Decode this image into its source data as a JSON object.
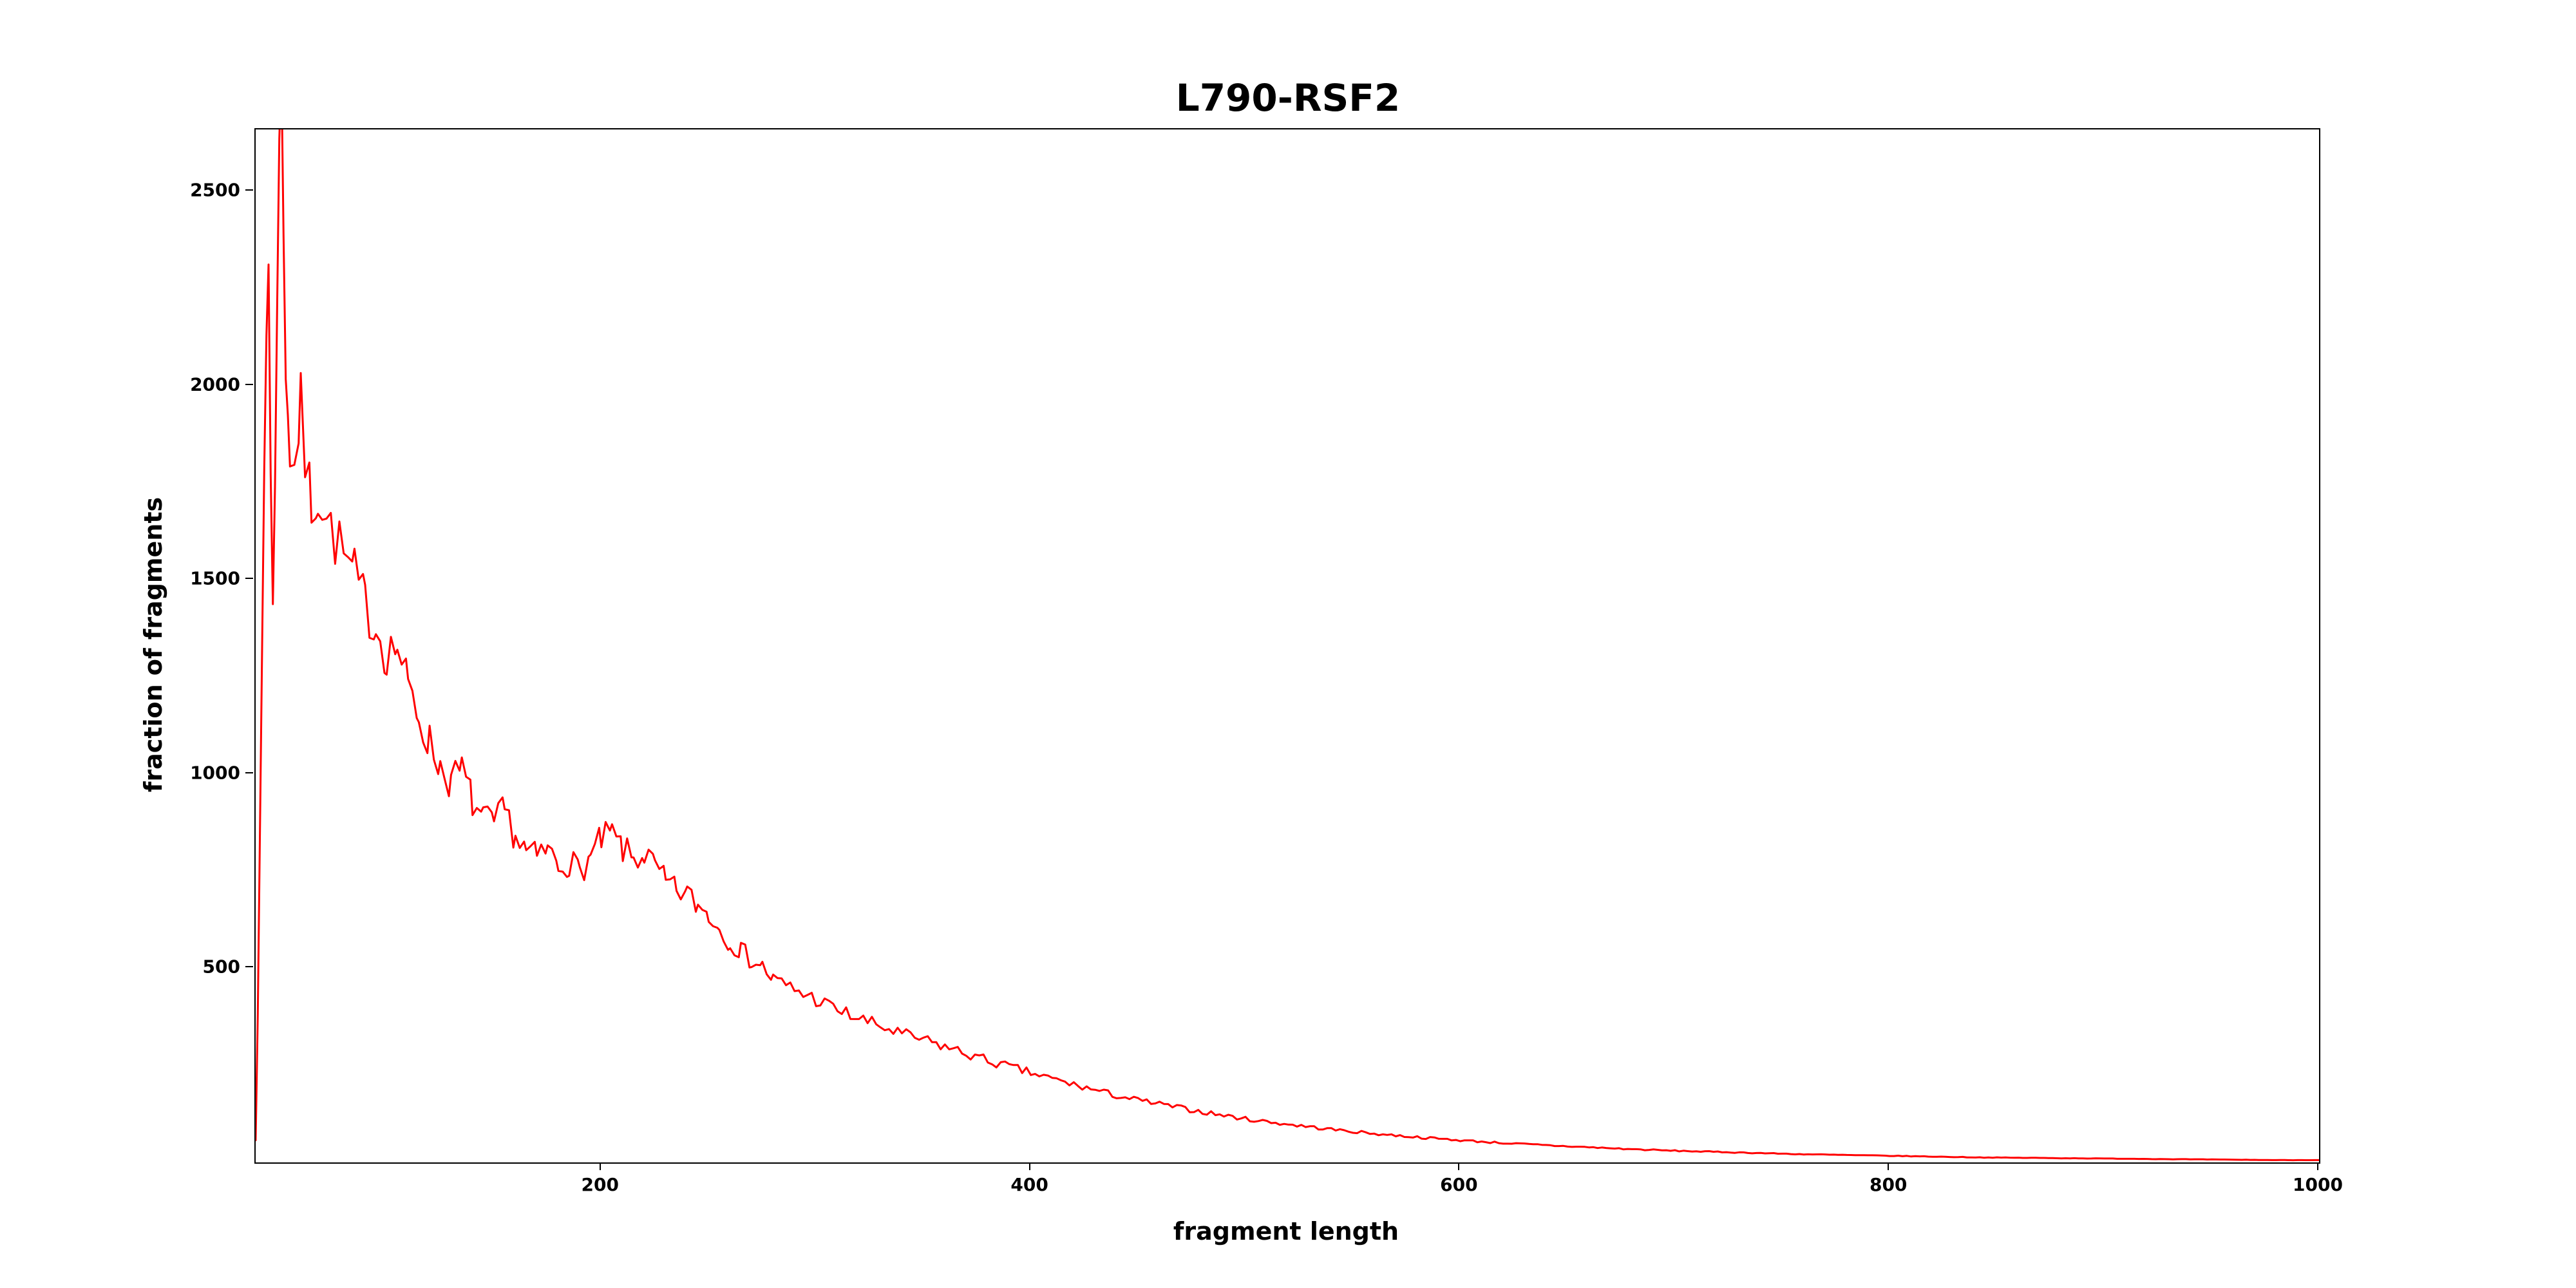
{
  "chart_data": {
    "type": "line",
    "title": "L790-RSF2",
    "xlabel": "fragment length",
    "ylabel": "fraction of fragments",
    "xlim": [
      39,
      1000
    ],
    "ylim": [
      0,
      2660
    ],
    "xticks": [
      200,
      400,
      600,
      800,
      1000
    ],
    "yticks": [
      500,
      1000,
      1500,
      2000,
      2500
    ],
    "grid": false,
    "legend": "none",
    "line_color": "#ff0000",
    "sample_step": 2,
    "noise": {
      "seed": 7,
      "fraction": 0.05
    },
    "anchors": [
      [
        39,
        60
      ],
      [
        40,
        400
      ],
      [
        41,
        820
      ],
      [
        42,
        1300
      ],
      [
        43,
        1780
      ],
      [
        44,
        2150
      ],
      [
        45,
        2320
      ],
      [
        46,
        1820
      ],
      [
        47,
        1430
      ],
      [
        48,
        1700
      ],
      [
        49,
        2250
      ],
      [
        50,
        2730
      ],
      [
        51,
        2740
      ],
      [
        52,
        2380
      ],
      [
        53,
        2080
      ],
      [
        54,
        1950
      ],
      [
        55,
        1830
      ],
      [
        57,
        1790
      ],
      [
        60,
        1940
      ],
      [
        62,
        1810
      ],
      [
        65,
        1700
      ],
      [
        68,
        1730
      ],
      [
        72,
        1650
      ],
      [
        76,
        1610
      ],
      [
        80,
        1560
      ],
      [
        85,
        1510
      ],
      [
        90,
        1440
      ],
      [
        95,
        1380
      ],
      [
        100,
        1310
      ],
      [
        105,
        1330
      ],
      [
        110,
        1220
      ],
      [
        115,
        1150
      ],
      [
        120,
        1080
      ],
      [
        125,
        1020
      ],
      [
        130,
        980
      ],
      [
        135,
        1010
      ],
      [
        140,
        930
      ],
      [
        145,
        880
      ],
      [
        150,
        870
      ],
      [
        155,
        905
      ],
      [
        160,
        840
      ],
      [
        165,
        800
      ],
      [
        170,
        785
      ],
      [
        175,
        805
      ],
      [
        180,
        765
      ],
      [
        185,
        775
      ],
      [
        190,
        750
      ],
      [
        195,
        785
      ],
      [
        200,
        830
      ],
      [
        205,
        845
      ],
      [
        210,
        805
      ],
      [
        215,
        780
      ],
      [
        220,
        795
      ],
      [
        225,
        760
      ],
      [
        230,
        720
      ],
      [
        235,
        700
      ],
      [
        240,
        690
      ],
      [
        245,
        660
      ],
      [
        250,
        640
      ],
      [
        255,
        600
      ],
      [
        260,
        570
      ],
      [
        265,
        545
      ],
      [
        270,
        520
      ],
      [
        275,
        505
      ],
      [
        280,
        470
      ],
      [
        290,
        445
      ],
      [
        300,
        420
      ],
      [
        310,
        392
      ],
      [
        320,
        370
      ],
      [
        330,
        350
      ],
      [
        340,
        330
      ],
      [
        350,
        315
      ],
      [
        360,
        298
      ],
      [
        370,
        280
      ],
      [
        380,
        262
      ],
      [
        390,
        246
      ],
      [
        400,
        230
      ],
      [
        410,
        215
      ],
      [
        420,
        200
      ],
      [
        430,
        186
      ],
      [
        440,
        172
      ],
      [
        450,
        160
      ],
      [
        460,
        150
      ],
      [
        470,
        140
      ],
      [
        480,
        130
      ],
      [
        490,
        121
      ],
      [
        500,
        112
      ],
      [
        520,
        98
      ],
      [
        540,
        85
      ],
      [
        560,
        74
      ],
      [
        580,
        65
      ],
      [
        600,
        57
      ],
      [
        620,
        50
      ],
      [
        640,
        44
      ],
      [
        660,
        39
      ],
      [
        680,
        34
      ],
      [
        700,
        30
      ],
      [
        720,
        27
      ],
      [
        740,
        24
      ],
      [
        760,
        21
      ],
      [
        780,
        19
      ],
      [
        800,
        17
      ],
      [
        820,
        15
      ],
      [
        840,
        13
      ],
      [
        860,
        12
      ],
      [
        880,
        11
      ],
      [
        900,
        10
      ],
      [
        920,
        9
      ],
      [
        940,
        8
      ],
      [
        960,
        7
      ],
      [
        980,
        6
      ],
      [
        1000,
        6
      ]
    ]
  }
}
